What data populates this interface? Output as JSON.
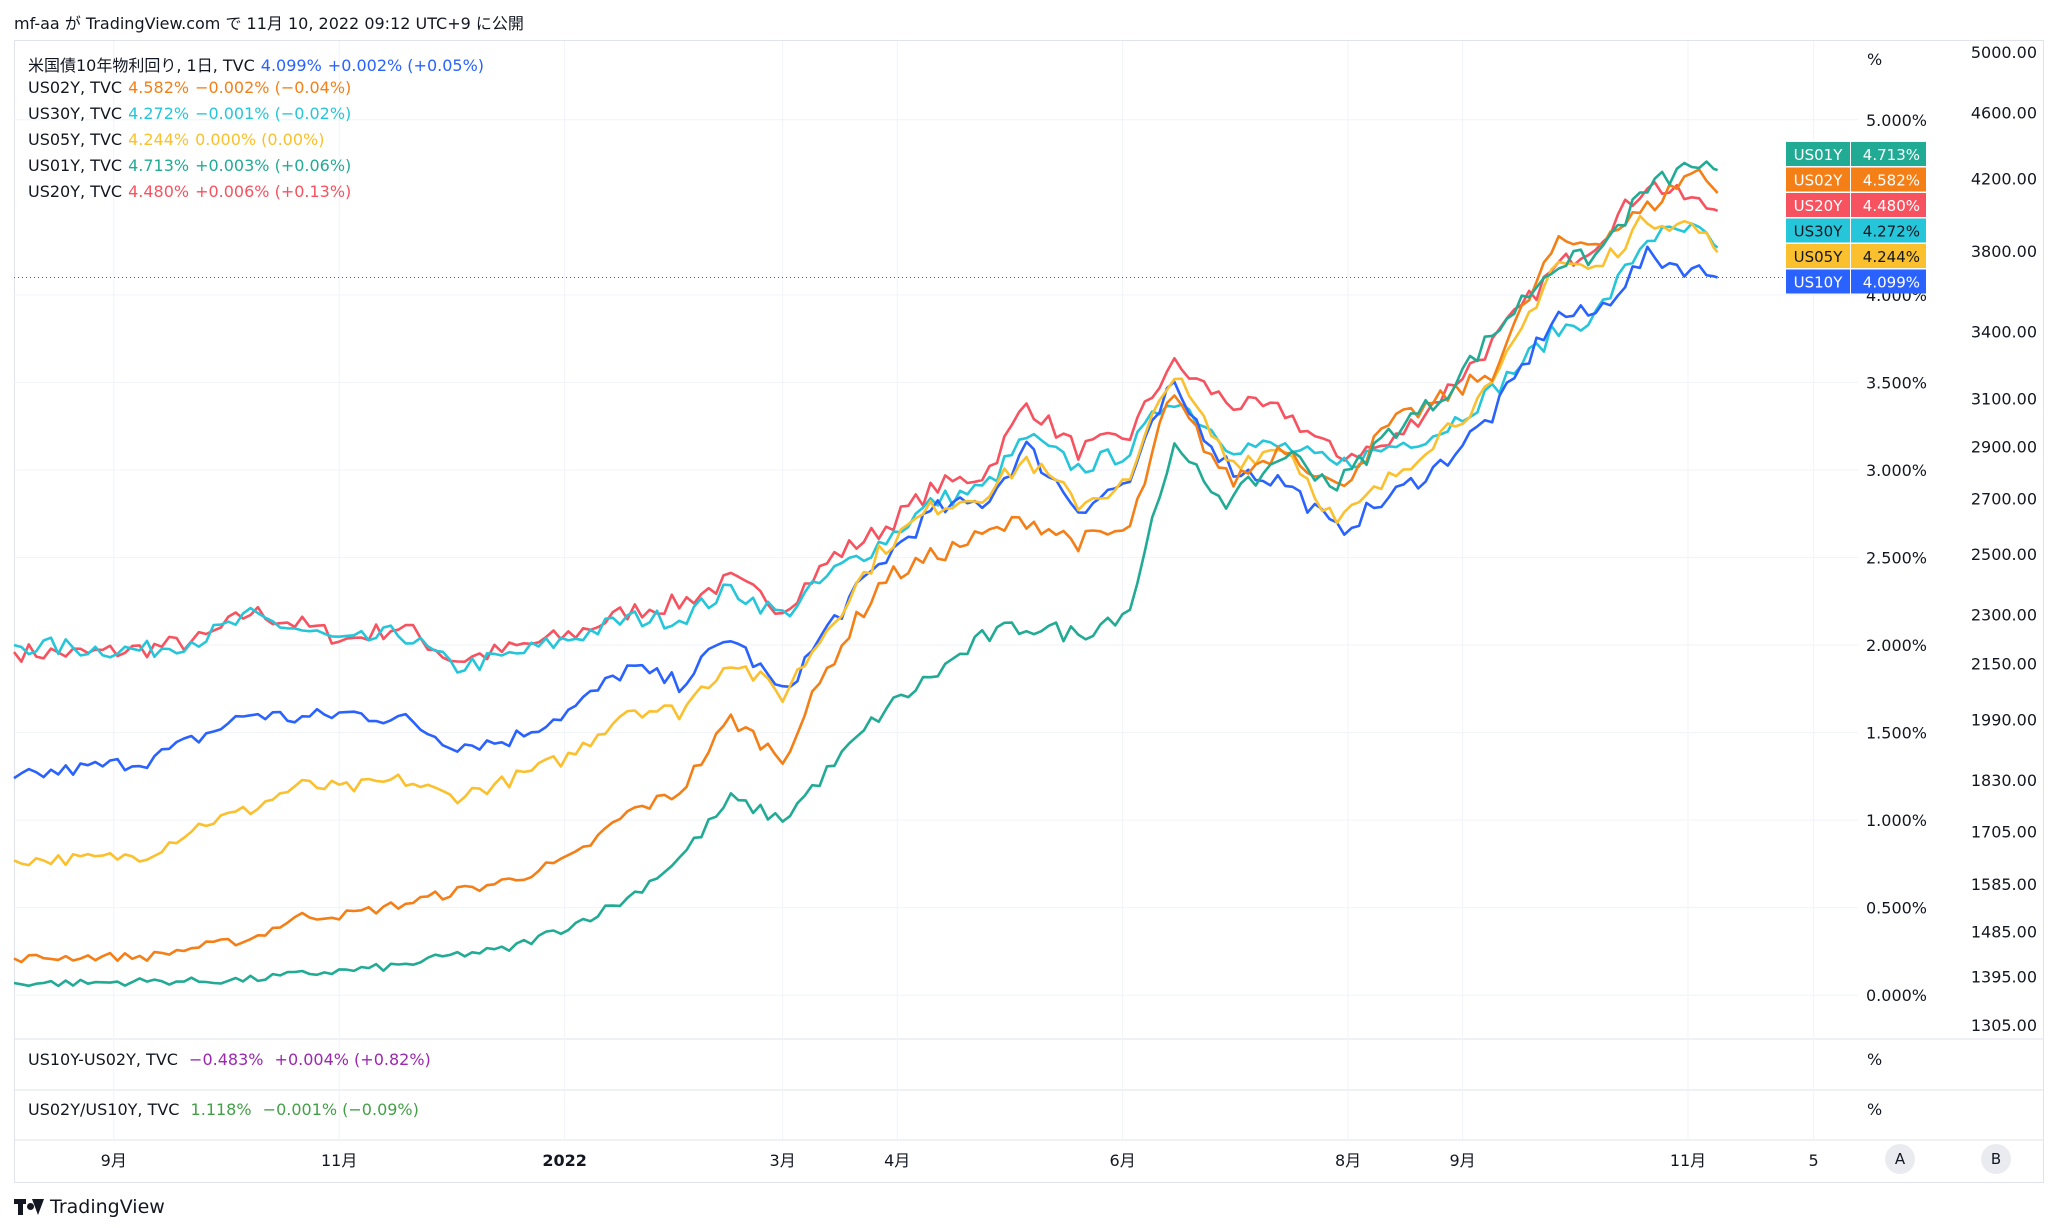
{
  "header": {
    "text": "mf-aa が TradingView.com で 11月 10, 2022 09:12 UTC+9 に公開"
  },
  "legend": [
    {
      "symbol": "米国債10年物利回り, 1日, TVC",
      "value": "4.099%",
      "change": "+0.002% (+0.05%)",
      "color": "#2962ff"
    },
    {
      "symbol": "US02Y, TVC",
      "value": "4.582%",
      "change": "−0.002% (−0.04%)",
      "color": "#f57f17"
    },
    {
      "symbol": "US30Y, TVC",
      "value": "4.272%",
      "change": "−0.001% (−0.02%)",
      "color": "#26c6da"
    },
    {
      "symbol": "US05Y, TVC",
      "value": "4.244%",
      "change": "0.000% (0.00%)",
      "color": "#fbc02d"
    },
    {
      "symbol": "US01Y, TVC",
      "value": "4.713%",
      "change": "+0.003% (+0.06%)",
      "color": "#22ab94"
    },
    {
      "symbol": "US20Y, TVC",
      "value": "4.480%",
      "change": "+0.006% (+0.13%)",
      "color": "#f7525f"
    }
  ],
  "panes": [
    {
      "symbol": "US10Y-US02Y, TVC",
      "value": "−0.483%",
      "change": "+0.004% (+0.82%)",
      "color": "#9c27b0",
      "unit": "%"
    },
    {
      "symbol": "US02Y/US10Y, TVC",
      "value": "1.118%",
      "change": "−0.001% (−0.09%)",
      "color": "#43a047",
      "unit": "%"
    }
  ],
  "badges": [
    {
      "name": "US01Y",
      "value": "4.713%",
      "color": "#22ab94",
      "text_color": "#ffffff"
    },
    {
      "name": "US02Y",
      "value": "4.582%",
      "color": "#f57f17",
      "text_color": "#ffffff"
    },
    {
      "name": "US20Y",
      "value": "4.480%",
      "color": "#f7525f",
      "text_color": "#ffffff"
    },
    {
      "name": "US30Y",
      "value": "4.272%",
      "color": "#26c6da",
      "text_color": "#131722"
    },
    {
      "name": "US05Y",
      "value": "4.244%",
      "color": "#fbc02d",
      "text_color": "#131722"
    },
    {
      "name": "US10Y",
      "value": "4.099%",
      "color": "#2962ff",
      "text_color": "#ffffff"
    }
  ],
  "chart_data": {
    "type": "line",
    "percent_unit": "%",
    "x_ticks": [
      {
        "label": "9月",
        "date": "2021-09-01"
      },
      {
        "label": "11月",
        "date": "2021-11-01"
      },
      {
        "label": "2022",
        "date": "2022-01-01",
        "bold": true
      },
      {
        "label": "3月",
        "date": "2022-03-01"
      },
      {
        "label": "4月",
        "date": "2022-04-01"
      },
      {
        "label": "6月",
        "date": "2022-06-01"
      },
      {
        "label": "8月",
        "date": "2022-08-01"
      },
      {
        "label": "9月",
        "date": "2022-09-01"
      },
      {
        "label": "11月",
        "date": "2022-11-01"
      },
      {
        "label": "5",
        "date": "2022-12-05"
      }
    ],
    "x_range": [
      "2021-08-05",
      "2022-12-17"
    ],
    "y_range_pct": [
      -0.25,
      5.45
    ],
    "pct_ticks": [
      {
        "value": 0.0,
        "label": "0.000%"
      },
      {
        "value": 0.5,
        "label": "0.500%"
      },
      {
        "value": 1.0,
        "label": "1.000%"
      },
      {
        "value": 1.5,
        "label": "1.500%"
      },
      {
        "value": 2.0,
        "label": "2.000%"
      },
      {
        "value": 2.5,
        "label": "2.500%"
      },
      {
        "value": 3.0,
        "label": "3.000%"
      },
      {
        "value": 3.5,
        "label": "3.500%"
      },
      {
        "value": 4.0,
        "label": "4.000%"
      },
      {
        "value": 5.0,
        "label": "5.000%"
      }
    ],
    "right_axis": {
      "log": true,
      "ticks": [
        {
          "value": 1305,
          "label": "1305.00"
        },
        {
          "value": 1395,
          "label": "1395.00"
        },
        {
          "value": 1485,
          "label": "1485.00"
        },
        {
          "value": 1585,
          "label": "1585.00"
        },
        {
          "value": 1705,
          "label": "1705.00"
        },
        {
          "value": 1830,
          "label": "1830.00"
        },
        {
          "value": 1990,
          "label": "1990.00"
        },
        {
          "value": 2150,
          "label": "2150.00"
        },
        {
          "value": 2300,
          "label": "2300.00"
        },
        {
          "value": 2500,
          "label": "2500.00"
        },
        {
          "value": 2700,
          "label": "2700.00"
        },
        {
          "value": 2900,
          "label": "2900.00"
        },
        {
          "value": 3100,
          "label": "3100.00"
        },
        {
          "value": 3400,
          "label": "3400.00"
        },
        {
          "value": 3800,
          "label": "3800.00"
        },
        {
          "value": 4200,
          "label": "4200.00"
        },
        {
          "value": 4600,
          "label": "4600.00"
        },
        {
          "value": 5000,
          "label": "5000.00"
        }
      ]
    },
    "last_value_line_pct": 4.099,
    "series": [
      {
        "name": "US20Y",
        "color": "#f7525f",
        "points": [
          [
            "2021-08-05",
            1.96
          ],
          [
            "2021-08-25",
            1.95
          ],
          [
            "2021-09-10",
            1.98
          ],
          [
            "2021-09-25",
            2.03
          ],
          [
            "2021-10-08",
            2.19
          ],
          [
            "2021-10-21",
            2.12
          ],
          [
            "2021-11-03",
            2.03
          ],
          [
            "2021-11-18",
            2.11
          ],
          [
            "2021-12-02",
            1.91
          ],
          [
            "2021-12-16",
            1.97
          ],
          [
            "2022-01-03",
            2.06
          ],
          [
            "2022-01-18",
            2.19
          ],
          [
            "2022-02-01",
            2.24
          ],
          [
            "2022-02-15",
            2.37
          ],
          [
            "2022-03-01",
            2.21
          ],
          [
            "2022-03-15",
            2.51
          ],
          [
            "2022-03-28",
            2.66
          ],
          [
            "2022-04-11",
            2.9
          ],
          [
            "2022-04-25",
            2.98
          ],
          [
            "2022-05-06",
            3.38
          ],
          [
            "2022-05-20",
            3.11
          ],
          [
            "2022-06-03",
            3.2
          ],
          [
            "2022-06-14",
            3.61
          ],
          [
            "2022-06-30",
            3.38
          ],
          [
            "2022-07-15",
            3.33
          ],
          [
            "2022-07-29",
            3.08
          ],
          [
            "2022-08-12",
            3.14
          ],
          [
            "2022-08-26",
            3.42
          ],
          [
            "2022-09-09",
            3.72
          ],
          [
            "2022-09-26",
            4.15
          ],
          [
            "2022-10-07",
            4.3
          ],
          [
            "2022-10-21",
            4.64
          ],
          [
            "2022-11-03",
            4.53
          ],
          [
            "2022-11-09",
            4.48
          ]
        ]
      },
      {
        "name": "US30Y",
        "color": "#26c6da",
        "points": [
          [
            "2021-08-05",
            2.0
          ],
          [
            "2021-08-25",
            1.98
          ],
          [
            "2021-09-10",
            1.97
          ],
          [
            "2021-09-25",
            2.04
          ],
          [
            "2021-10-08",
            2.16
          ],
          [
            "2021-10-21",
            2.09
          ],
          [
            "2021-11-03",
            2.01
          ],
          [
            "2021-11-18",
            2.07
          ],
          [
            "2021-12-02",
            1.87
          ],
          [
            "2021-12-16",
            1.93
          ],
          [
            "2022-01-03",
            2.04
          ],
          [
            "2022-01-18",
            2.15
          ],
          [
            "2022-02-01",
            2.15
          ],
          [
            "2022-02-15",
            2.32
          ],
          [
            "2022-03-01",
            2.17
          ],
          [
            "2022-03-15",
            2.42
          ],
          [
            "2022-03-28",
            2.59
          ],
          [
            "2022-04-11",
            2.82
          ],
          [
            "2022-04-25",
            2.9
          ],
          [
            "2022-05-06",
            3.19
          ],
          [
            "2022-05-20",
            3.01
          ],
          [
            "2022-06-03",
            3.11
          ],
          [
            "2022-06-14",
            3.43
          ],
          [
            "2022-06-30",
            3.14
          ],
          [
            "2022-07-15",
            3.13
          ],
          [
            "2022-07-29",
            3.02
          ],
          [
            "2022-08-12",
            3.13
          ],
          [
            "2022-08-26",
            3.22
          ],
          [
            "2022-09-09",
            3.45
          ],
          [
            "2022-09-26",
            3.79
          ],
          [
            "2022-10-07",
            3.88
          ],
          [
            "2022-10-21",
            4.33
          ],
          [
            "2022-11-03",
            4.37
          ],
          [
            "2022-11-09",
            4.27
          ]
        ]
      },
      {
        "name": "US10Y",
        "color": "#2962ff",
        "points": [
          [
            "2021-08-05",
            1.24
          ],
          [
            "2021-08-25",
            1.3
          ],
          [
            "2021-09-10",
            1.34
          ],
          [
            "2021-09-25",
            1.48
          ],
          [
            "2021-10-08",
            1.61
          ],
          [
            "2021-10-21",
            1.58
          ],
          [
            "2021-11-03",
            1.61
          ],
          [
            "2021-11-18",
            1.58
          ],
          [
            "2021-12-02",
            1.43
          ],
          [
            "2021-12-16",
            1.45
          ],
          [
            "2022-01-03",
            1.63
          ],
          [
            "2022-01-18",
            1.87
          ],
          [
            "2022-02-01",
            1.78
          ],
          [
            "2022-02-15",
            2.05
          ],
          [
            "2022-03-01",
            1.72
          ],
          [
            "2022-03-15",
            2.15
          ],
          [
            "2022-03-28",
            2.48
          ],
          [
            "2022-04-11",
            2.77
          ],
          [
            "2022-04-25",
            2.82
          ],
          [
            "2022-05-06",
            3.13
          ],
          [
            "2022-05-20",
            2.78
          ],
          [
            "2022-06-03",
            2.94
          ],
          [
            "2022-06-14",
            3.48
          ],
          [
            "2022-06-30",
            3.01
          ],
          [
            "2022-07-15",
            2.93
          ],
          [
            "2022-07-29",
            2.65
          ],
          [
            "2022-08-12",
            2.84
          ],
          [
            "2022-08-26",
            3.03
          ],
          [
            "2022-09-09",
            3.31
          ],
          [
            "2022-09-26",
            3.88
          ],
          [
            "2022-10-07",
            3.89
          ],
          [
            "2022-10-21",
            4.22
          ],
          [
            "2022-11-03",
            4.14
          ],
          [
            "2022-11-09",
            4.099
          ]
        ]
      },
      {
        "name": "US05Y",
        "color": "#fbc02d",
        "points": [
          [
            "2021-08-05",
            0.77
          ],
          [
            "2021-08-25",
            0.78
          ],
          [
            "2021-09-10",
            0.8
          ],
          [
            "2021-09-25",
            0.98
          ],
          [
            "2021-10-08",
            1.06
          ],
          [
            "2021-10-21",
            1.2
          ],
          [
            "2021-11-03",
            1.18
          ],
          [
            "2021-11-18",
            1.23
          ],
          [
            "2021-12-02",
            1.13
          ],
          [
            "2021-12-16",
            1.22
          ],
          [
            "2022-01-03",
            1.37
          ],
          [
            "2022-01-18",
            1.64
          ],
          [
            "2022-02-01",
            1.62
          ],
          [
            "2022-02-15",
            1.92
          ],
          [
            "2022-03-01",
            1.71
          ],
          [
            "2022-03-15",
            2.16
          ],
          [
            "2022-03-28",
            2.55
          ],
          [
            "2022-04-11",
            2.79
          ],
          [
            "2022-04-25",
            2.87
          ],
          [
            "2022-05-06",
            3.06
          ],
          [
            "2022-05-20",
            2.81
          ],
          [
            "2022-06-03",
            2.93
          ],
          [
            "2022-06-14",
            3.57
          ],
          [
            "2022-06-30",
            3.04
          ],
          [
            "2022-07-15",
            3.14
          ],
          [
            "2022-07-29",
            2.69
          ],
          [
            "2022-08-12",
            2.94
          ],
          [
            "2022-08-26",
            3.21
          ],
          [
            "2022-09-09",
            3.46
          ],
          [
            "2022-09-26",
            4.19
          ],
          [
            "2022-10-07",
            4.14
          ],
          [
            "2022-10-21",
            4.44
          ],
          [
            "2022-11-03",
            4.39
          ],
          [
            "2022-11-09",
            4.244
          ]
        ]
      },
      {
        "name": "US02Y",
        "color": "#f57f17",
        "points": [
          [
            "2021-08-05",
            0.21
          ],
          [
            "2021-08-25",
            0.22
          ],
          [
            "2021-09-10",
            0.22
          ],
          [
            "2021-09-25",
            0.28
          ],
          [
            "2021-10-08",
            0.32
          ],
          [
            "2021-10-21",
            0.45
          ],
          [
            "2021-11-03",
            0.46
          ],
          [
            "2021-11-18",
            0.52
          ],
          [
            "2021-12-02",
            0.59
          ],
          [
            "2021-12-16",
            0.65
          ],
          [
            "2022-01-03",
            0.78
          ],
          [
            "2022-01-18",
            1.04
          ],
          [
            "2022-02-01",
            1.16
          ],
          [
            "2022-02-15",
            1.58
          ],
          [
            "2022-03-01",
            1.35
          ],
          [
            "2022-03-15",
            1.94
          ],
          [
            "2022-03-28",
            2.37
          ],
          [
            "2022-04-11",
            2.51
          ],
          [
            "2022-04-25",
            2.63
          ],
          [
            "2022-05-06",
            2.72
          ],
          [
            "2022-05-20",
            2.59
          ],
          [
            "2022-06-03",
            2.66
          ],
          [
            "2022-06-14",
            3.43
          ],
          [
            "2022-06-30",
            2.93
          ],
          [
            "2022-07-15",
            3.14
          ],
          [
            "2022-07-29",
            2.89
          ],
          [
            "2022-08-12",
            3.25
          ],
          [
            "2022-08-26",
            3.4
          ],
          [
            "2022-09-09",
            3.56
          ],
          [
            "2022-09-26",
            4.28
          ],
          [
            "2022-10-07",
            4.31
          ],
          [
            "2022-10-21",
            4.49
          ],
          [
            "2022-11-03",
            4.72
          ],
          [
            "2022-11-09",
            4.582
          ]
        ]
      },
      {
        "name": "US01Y",
        "color": "#22ab94",
        "points": [
          [
            "2021-08-05",
            0.07
          ],
          [
            "2021-08-25",
            0.07
          ],
          [
            "2021-09-10",
            0.08
          ],
          [
            "2021-09-25",
            0.08
          ],
          [
            "2021-10-08",
            0.09
          ],
          [
            "2021-10-21",
            0.12
          ],
          [
            "2021-11-03",
            0.14
          ],
          [
            "2021-11-18",
            0.17
          ],
          [
            "2021-12-02",
            0.23
          ],
          [
            "2021-12-16",
            0.26
          ],
          [
            "2022-01-03",
            0.4
          ],
          [
            "2022-01-18",
            0.55
          ],
          [
            "2022-02-01",
            0.78
          ],
          [
            "2022-02-15",
            1.12
          ],
          [
            "2022-03-01",
            1.0
          ],
          [
            "2022-03-15",
            1.32
          ],
          [
            "2022-03-28",
            1.62
          ],
          [
            "2022-04-11",
            1.83
          ],
          [
            "2022-04-25",
            2.05
          ],
          [
            "2022-05-06",
            2.11
          ],
          [
            "2022-05-20",
            2.06
          ],
          [
            "2022-06-03",
            2.21
          ],
          [
            "2022-06-14",
            3.12
          ],
          [
            "2022-06-30",
            2.81
          ],
          [
            "2022-07-15",
            3.1
          ],
          [
            "2022-07-29",
            2.91
          ],
          [
            "2022-08-12",
            3.21
          ],
          [
            "2022-08-26",
            3.41
          ],
          [
            "2022-09-09",
            3.77
          ],
          [
            "2022-09-26",
            4.18
          ],
          [
            "2022-10-07",
            4.22
          ],
          [
            "2022-10-21",
            4.61
          ],
          [
            "2022-11-03",
            4.75
          ],
          [
            "2022-11-09",
            4.713
          ]
        ]
      }
    ]
  },
  "time_scale_buttons": [
    {
      "label": "A"
    },
    {
      "label": "B"
    }
  ],
  "footer": {
    "brand": "TradingView"
  }
}
